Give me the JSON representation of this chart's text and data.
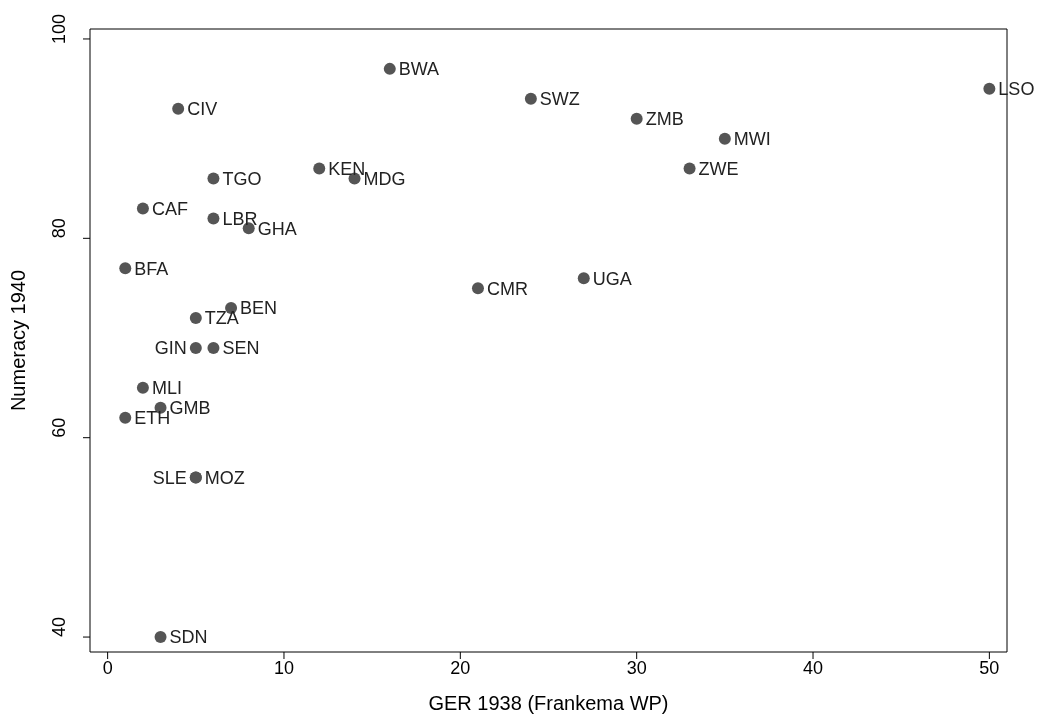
{
  "chart_data": {
    "type": "scatter",
    "xlabel": "GER 1938 (Frankema WP)",
    "ylabel": "Numeracy 1940",
    "xlim": [
      -1,
      51
    ],
    "xticks": [
      0,
      10,
      20,
      30,
      40,
      50
    ],
    "ylim": [
      38.5,
      101
    ],
    "yticks": [
      40,
      60,
      80,
      100
    ],
    "grid": false,
    "legend": false,
    "marker": "circle",
    "series": [
      {
        "color": "#555555",
        "x": [
          16,
          24,
          50,
          30,
          35,
          33,
          4,
          6,
          12,
          14,
          2,
          6,
          8,
          1,
          21,
          27,
          7,
          5,
          5,
          6,
          2,
          3,
          1,
          5,
          5,
          3
        ],
        "values": [
          97,
          94,
          95,
          92,
          90,
          87,
          93,
          86,
          87,
          86,
          83,
          82,
          81,
          77,
          75,
          76,
          73,
          72,
          69,
          69,
          65,
          63,
          62,
          56,
          56,
          40
        ]
      }
    ],
    "annotations": [
      {
        "text": "BWA",
        "x": 16,
        "y": 97
      },
      {
        "text": "SWZ",
        "x": 24,
        "y": 94
      },
      {
        "text": "LSO",
        "x": 50,
        "y": 95
      },
      {
        "text": "ZMB",
        "x": 30,
        "y": 92
      },
      {
        "text": "MWI",
        "x": 35,
        "y": 90
      },
      {
        "text": "ZWE",
        "x": 33,
        "y": 87
      },
      {
        "text": "CIV",
        "x": 4,
        "y": 93
      },
      {
        "text": "TGO",
        "x": 6,
        "y": 86
      },
      {
        "text": "KEN",
        "x": 12,
        "y": 87
      },
      {
        "text": "MDG",
        "x": 14,
        "y": 86
      },
      {
        "text": "CAF",
        "x": 2,
        "y": 83
      },
      {
        "text": "LBR",
        "x": 6,
        "y": 82
      },
      {
        "text": "GHA",
        "x": 8,
        "y": 81
      },
      {
        "text": "BFA",
        "x": 1,
        "y": 77
      },
      {
        "text": "CMR",
        "x": 21,
        "y": 75
      },
      {
        "text": "UGA",
        "x": 27,
        "y": 76
      },
      {
        "text": "BEN",
        "x": 7,
        "y": 73
      },
      {
        "text": "TZA",
        "x": 5,
        "y": 72
      },
      {
        "text": "GIN",
        "x": 5,
        "y": 69
      },
      {
        "text": "SEN",
        "x": 6,
        "y": 69
      },
      {
        "text": "MLI",
        "x": 2,
        "y": 65
      },
      {
        "text": "GMB",
        "x": 3,
        "y": 63
      },
      {
        "text": "ETH",
        "x": 1,
        "y": 62
      },
      {
        "text": "SLE",
        "x": 5,
        "y": 56
      },
      {
        "text": "MOZ",
        "x": 5,
        "y": 56
      },
      {
        "text": "SDN",
        "x": 3,
        "y": 40
      }
    ]
  }
}
